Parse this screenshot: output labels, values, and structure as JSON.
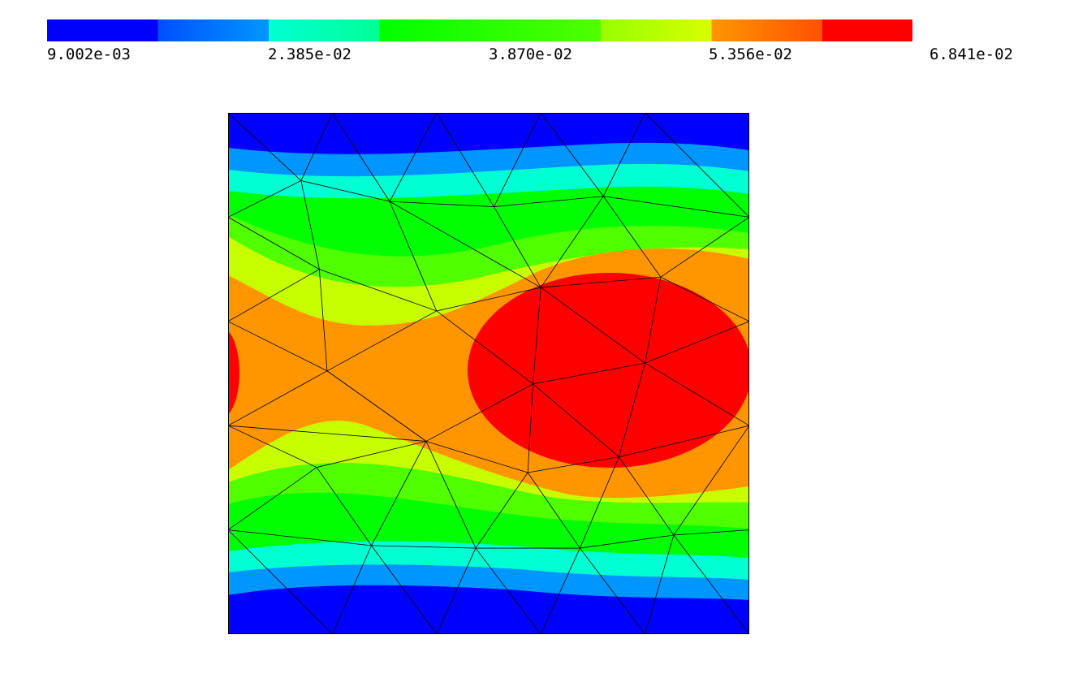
{
  "chart_data": {
    "type": "heatmap",
    "title": "",
    "xlabel": "",
    "ylabel": "",
    "colorbar": {
      "min": 0.009002,
      "max": 0.06841,
      "tick_labels": [
        "9.002e-03",
        "2.385e-02",
        "3.870e-02",
        "5.356e-02",
        "6.841e-02"
      ],
      "tick_values": [
        0.009002,
        0.02385,
        0.0387,
        0.05356,
        0.06841
      ],
      "colors": [
        "#0000ff",
        "#0064ff",
        "#00ffd2",
        "#00ff00",
        "#c8ff00",
        "#ff9600",
        "#ff0000"
      ]
    },
    "field": {
      "description_values": "filled contours of a scalar field over a square domain, highest near centre-right, lowest at top and bottom edges",
      "x_range": [
        0,
        1
      ],
      "y_range": [
        0,
        1
      ]
    },
    "mesh_nodes": [
      [
        0.0,
        1.0
      ],
      [
        0.2,
        1.0
      ],
      [
        0.4,
        1.0
      ],
      [
        0.6,
        1.0
      ],
      [
        0.8,
        1.0
      ],
      [
        1.0,
        1.0
      ],
      [
        0.14,
        0.87
      ],
      [
        0.31,
        0.83
      ],
      [
        0.51,
        0.82
      ],
      [
        0.72,
        0.84
      ],
      [
        0.0,
        0.8
      ],
      [
        1.0,
        0.8
      ],
      [
        0.175,
        0.7
      ],
      [
        0.6,
        0.665
      ],
      [
        0.83,
        0.685
      ],
      [
        0.4,
        0.62
      ],
      [
        0.0,
        0.6
      ],
      [
        1.0,
        0.6
      ],
      [
        0.19,
        0.505
      ],
      [
        0.8,
        0.52
      ],
      [
        0.585,
        0.48
      ],
      [
        0.0,
        0.4
      ],
      [
        1.0,
        0.4
      ],
      [
        0.38,
        0.37
      ],
      [
        0.17,
        0.32
      ],
      [
        0.575,
        0.31
      ],
      [
        0.75,
        0.34
      ],
      [
        0.0,
        0.2
      ],
      [
        1.0,
        0.2
      ],
      [
        0.275,
        0.17
      ],
      [
        0.475,
        0.165
      ],
      [
        0.675,
        0.165
      ],
      [
        0.855,
        0.19
      ],
      [
        0.0,
        0.0
      ],
      [
        0.2,
        0.0
      ],
      [
        0.4,
        0.0
      ],
      [
        0.6,
        0.0
      ],
      [
        0.8,
        0.0
      ],
      [
        1.0,
        0.0
      ]
    ],
    "mesh_edges": [
      [
        0,
        1
      ],
      [
        1,
        2
      ],
      [
        2,
        3
      ],
      [
        3,
        4
      ],
      [
        4,
        5
      ],
      [
        0,
        6
      ],
      [
        1,
        6
      ],
      [
        1,
        7
      ],
      [
        2,
        7
      ],
      [
        2,
        8
      ],
      [
        3,
        8
      ],
      [
        3,
        9
      ],
      [
        4,
        9
      ],
      [
        4,
        11
      ],
      [
        5,
        11
      ],
      [
        6,
        7
      ],
      [
        7,
        8
      ],
      [
        8,
        9
      ],
      [
        9,
        11
      ],
      [
        10,
        6
      ],
      [
        10,
        12
      ],
      [
        6,
        12
      ],
      [
        10,
        16
      ],
      [
        7,
        13
      ],
      [
        8,
        13
      ],
      [
        9,
        13
      ],
      [
        9,
        14
      ],
      [
        11,
        14
      ],
      [
        12,
        15
      ],
      [
        7,
        15
      ],
      [
        13,
        15
      ],
      [
        13,
        14
      ],
      [
        14,
        17
      ],
      [
        11,
        17
      ],
      [
        12,
        18
      ],
      [
        16,
        12
      ],
      [
        16,
        18
      ],
      [
        16,
        21
      ],
      [
        15,
        18
      ],
      [
        15,
        20
      ],
      [
        13,
        20
      ],
      [
        14,
        19
      ],
      [
        13,
        19
      ],
      [
        19,
        20
      ],
      [
        19,
        17
      ],
      [
        19,
        22
      ],
      [
        17,
        22
      ],
      [
        18,
        21
      ],
      [
        18,
        23
      ],
      [
        20,
        23
      ],
      [
        21,
        24
      ],
      [
        21,
        23
      ],
      [
        18,
        23
      ],
      [
        23,
        24
      ],
      [
        20,
        25
      ],
      [
        23,
        25
      ],
      [
        20,
        26
      ],
      [
        25,
        26
      ],
      [
        19,
        26
      ],
      [
        26,
        22
      ],
      [
        24,
        27
      ],
      [
        24,
        29
      ],
      [
        23,
        29
      ],
      [
        23,
        30
      ],
      [
        25,
        30
      ],
      [
        25,
        31
      ],
      [
        26,
        31
      ],
      [
        26,
        32
      ],
      [
        22,
        32
      ],
      [
        22,
        28
      ],
      [
        27,
        29
      ],
      [
        29,
        30
      ],
      [
        30,
        31
      ],
      [
        31,
        32
      ],
      [
        32,
        28
      ],
      [
        27,
        33
      ],
      [
        27,
        34
      ],
      [
        29,
        34
      ],
      [
        29,
        35
      ],
      [
        30,
        35
      ],
      [
        30,
        36
      ],
      [
        31,
        36
      ],
      [
        31,
        37
      ],
      [
        32,
        37
      ],
      [
        32,
        38
      ],
      [
        28,
        38
      ]
    ],
    "grid": false,
    "legend": "top"
  }
}
